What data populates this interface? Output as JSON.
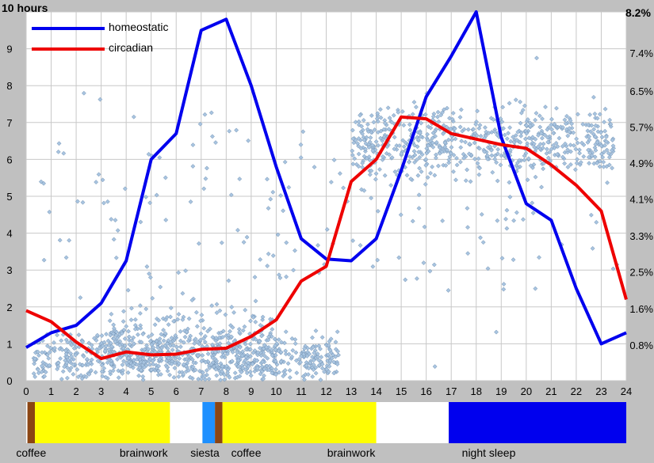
{
  "chart_data": {
    "type": "line",
    "corner_labels": {
      "left": "10 hours",
      "right": "8.2%"
    },
    "x": [
      0,
      1,
      2,
      3,
      4,
      5,
      6,
      7,
      8,
      9,
      10,
      11,
      12,
      13,
      14,
      15,
      16,
      17,
      18,
      19,
      20,
      21,
      22,
      23,
      24
    ],
    "x_ticks": [
      "0",
      "1",
      "2",
      "3",
      "4",
      "5",
      "6",
      "7",
      "8",
      "9",
      "10",
      "11",
      "12",
      "13",
      "14",
      "15",
      "16",
      "17",
      "18",
      "19",
      "20",
      "21",
      "22",
      "23",
      "24"
    ],
    "xlim": [
      0,
      24
    ],
    "ylim": [
      0,
      10
    ],
    "y_ticks_left": [
      "0",
      "1",
      "2",
      "3",
      "4",
      "5",
      "6",
      "7",
      "8",
      "9"
    ],
    "y_ticks_right": [
      {
        "label": "0.8%",
        "at": 0.97
      },
      {
        "label": "1.6%",
        "at": 1.95
      },
      {
        "label": "2.5%",
        "at": 2.95
      },
      {
        "label": "3.3%",
        "at": 3.93
      },
      {
        "label": "4.1%",
        "at": 4.92
      },
      {
        "label": "4.9%",
        "at": 5.9
      },
      {
        "label": "5.7%",
        "at": 6.88
      },
      {
        "label": "6.5%",
        "at": 7.85
      },
      {
        "label": "7.4%",
        "at": 8.88
      }
    ],
    "grid": true,
    "legend_position": "top-left",
    "series": [
      {
        "name": "homeostatic",
        "color": "#0000ee",
        "x": [
          0,
          1,
          2,
          3,
          4,
          5,
          6,
          7,
          8,
          9,
          10,
          11,
          12,
          13,
          14,
          15,
          16,
          17,
          18,
          19,
          20,
          21,
          22,
          23,
          24
        ],
        "values": [
          0.9,
          1.3,
          1.5,
          2.1,
          3.25,
          6.0,
          6.7,
          9.5,
          9.8,
          8.0,
          5.8,
          3.85,
          3.3,
          3.25,
          3.85,
          5.7,
          7.7,
          8.8,
          10.0,
          6.6,
          4.8,
          4.35,
          2.5,
          1.0,
          1.3
        ]
      },
      {
        "name": "circadian",
        "color": "#ee0000",
        "x": [
          0,
          1,
          2,
          3,
          4,
          5,
          6,
          7,
          8,
          9,
          10,
          11,
          12,
          13,
          14,
          15,
          16,
          17,
          18,
          19,
          20,
          21,
          22,
          23,
          24
        ],
        "values": [
          1.9,
          1.6,
          1.05,
          0.6,
          0.78,
          0.7,
          0.72,
          0.85,
          0.88,
          1.2,
          1.65,
          2.7,
          3.1,
          5.4,
          6.0,
          7.15,
          7.1,
          6.7,
          6.55,
          6.4,
          6.3,
          5.85,
          5.3,
          4.6,
          2.2
        ]
      }
    ],
    "scatter": {
      "color": "#a8c4e0",
      "edge": "#6f8fb0",
      "clusters": [
        {
          "x_range": [
            0.3,
            12.5
          ],
          "y_center": 0.6,
          "y_spread": 0.9,
          "count": 700
        },
        {
          "x_range": [
            3.0,
            10.0
          ],
          "y_center": 1.0,
          "y_spread": 1.4,
          "count": 350
        },
        {
          "x_range": [
            13.0,
            23.5
          ],
          "y_center": 6.5,
          "y_spread": 1.4,
          "count": 650
        },
        {
          "x_range": [
            0.0,
            24.0
          ],
          "y_center": 4.5,
          "y_spread": 4.5,
          "count": 180
        }
      ]
    },
    "schedule": [
      {
        "label": "",
        "start": 0.05,
        "end": 0.35,
        "color": "#8b4513"
      },
      {
        "label": "",
        "start": 0.35,
        "end": 5.75,
        "color": "#ffff00"
      },
      {
        "label": "",
        "start": 7.05,
        "end": 7.55,
        "color": "#1e90ff"
      },
      {
        "label": "",
        "start": 7.55,
        "end": 7.85,
        "color": "#8b4513"
      },
      {
        "label": "",
        "start": 7.85,
        "end": 14.0,
        "color": "#ffff00"
      },
      {
        "label": "",
        "start": 16.9,
        "end": 24.0,
        "color": "#0000ee"
      }
    ],
    "schedule_labels": [
      {
        "text": "coffee",
        "at": 0.2
      },
      {
        "text": "brainwork",
        "at": 4.7
      },
      {
        "text": "siesta",
        "at": 7.15
      },
      {
        "text": "coffee",
        "at": 8.8
      },
      {
        "text": "brainwork",
        "at": 13.0
      },
      {
        "text": "night sleep",
        "at": 18.5
      }
    ]
  }
}
